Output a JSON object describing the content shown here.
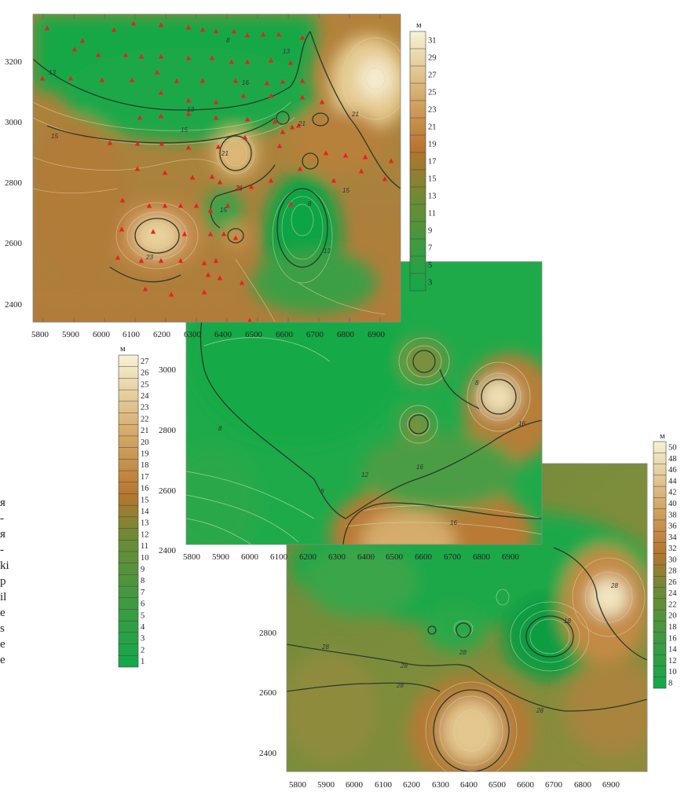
{
  "maps": [
    {
      "id": "top",
      "x_ticks": [
        "5800",
        "5900",
        "6000",
        "6100",
        "6200",
        "6300",
        "6400",
        "6500",
        "6600",
        "6700",
        "6800",
        "6900"
      ],
      "y_ticks": [
        "3200",
        "3000",
        "2800",
        "2600",
        "2400"
      ],
      "legend_unit": "м",
      "legend_ticks": [
        "31",
        "29",
        "27",
        "25",
        "23",
        "21",
        "19",
        "17",
        "15",
        "13",
        "11",
        "9",
        "7",
        "5",
        "3"
      ],
      "contour_labels": [
        "13",
        "13",
        "15",
        "15",
        "15",
        "21",
        "23",
        "21",
        "21",
        "13",
        "13",
        "15",
        "16",
        "8",
        "8",
        "21"
      ]
    },
    {
      "id": "middle",
      "x_ticks": [
        "5800",
        "5900",
        "6000",
        "6100",
        "6200",
        "6300",
        "6400",
        "6500",
        "6600",
        "6700",
        "6800",
        "6900"
      ],
      "y_ticks": [
        "3000",
        "2800",
        "2600",
        "2400"
      ],
      "legend_unit": "м",
      "legend_ticks": [
        "27",
        "26",
        "25",
        "24",
        "23",
        "22",
        "21",
        "20",
        "19",
        "18",
        "17",
        "16",
        "15",
        "14",
        "13",
        "12",
        "11",
        "10",
        "9",
        "8",
        "7",
        "6",
        "5",
        "4",
        "3",
        "2",
        "1"
      ],
      "contour_labels": [
        "8",
        "8",
        "8",
        "16",
        "16",
        "16",
        "12",
        "8"
      ]
    },
    {
      "id": "bottom",
      "x_ticks": [
        "5800",
        "5900",
        "6000",
        "6100",
        "6200",
        "6300",
        "6400",
        "6500",
        "6600",
        "6700",
        "6800",
        "6900"
      ],
      "y_ticks": [
        "2800",
        "2600",
        "2400"
      ],
      "legend_unit": "м",
      "legend_ticks": [
        "50",
        "48",
        "46",
        "44",
        "42",
        "40",
        "38",
        "36",
        "34",
        "32",
        "30",
        "28",
        "26",
        "24",
        "22",
        "20",
        "18",
        "16",
        "14",
        "12",
        "10",
        "8"
      ],
      "contour_labels": [
        "28",
        "28",
        "28",
        "28",
        "28",
        "18",
        "28"
      ]
    }
  ],
  "side_text": [
    "я",
    "-",
    "я",
    "-",
    "ki",
    "",
    "p",
    "il",
    "e",
    "s",
    "e",
    "e"
  ],
  "colors": {
    "green": "#1faa4a",
    "olive": "#7e8f3c",
    "brown": "#b87a35",
    "cream": "#f1e7c5",
    "contour": "#2b3a2a",
    "station": "#e52222"
  }
}
